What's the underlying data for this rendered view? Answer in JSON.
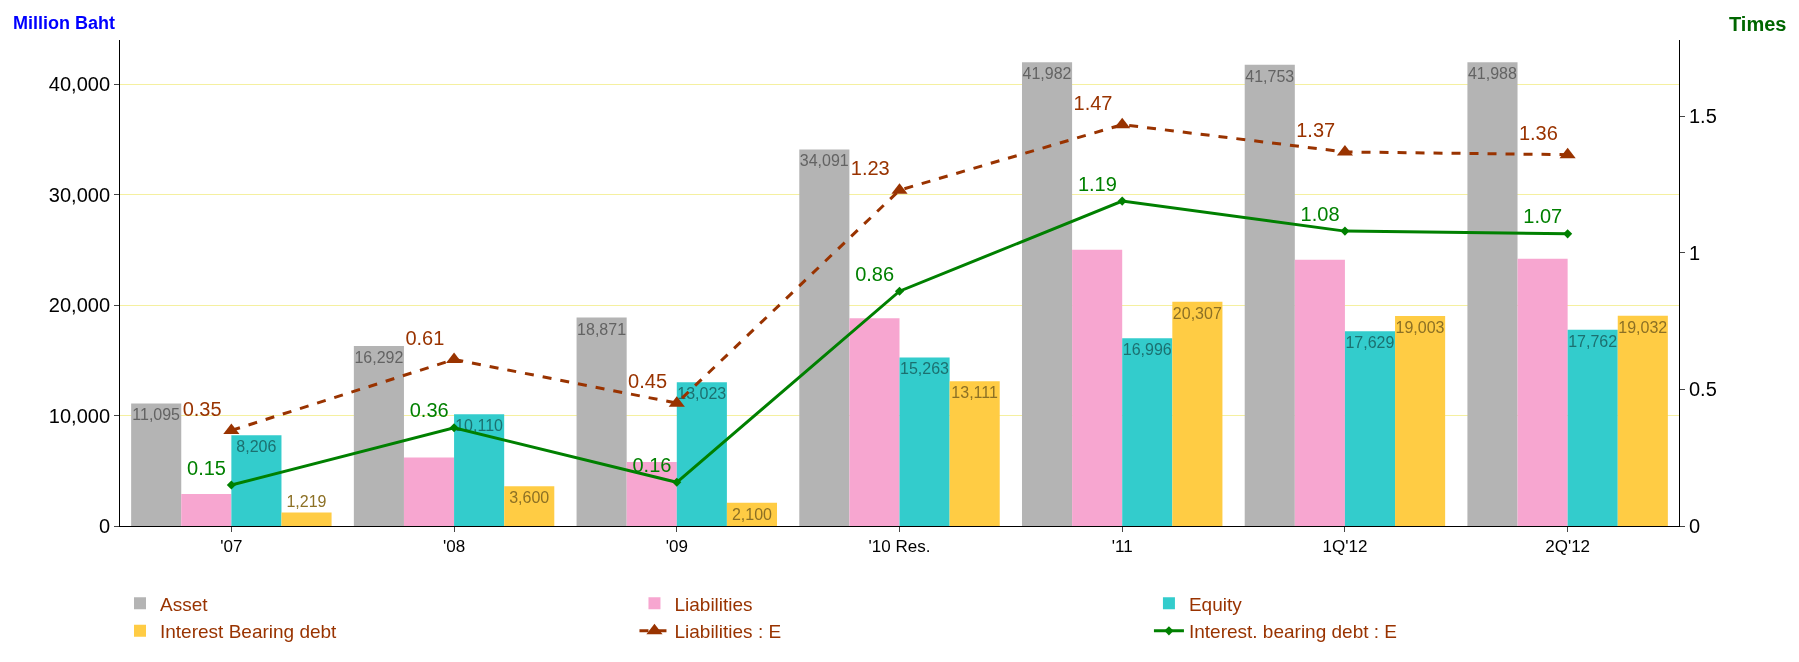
{
  "chart_data": {
    "type": "bar",
    "ylabel": "Million Baht",
    "y2label": "Times",
    "categories": [
      "'07",
      "'08",
      "'09",
      "'10 Res.",
      "'11",
      "1Q'12",
      "2Q'12"
    ],
    "series": [
      {
        "name": "Asset",
        "color": "#b4b4b4",
        "values": [
          11095,
          16292,
          18871,
          34091,
          41982,
          41753,
          41988
        ],
        "value_labels": [
          "11,095",
          "16,292",
          "18,871",
          "34,091",
          "41,982",
          "41,753",
          "41,988"
        ]
      },
      {
        "name": "Liabilities",
        "color": "#f7a6d0",
        "values": [
          2900,
          6200,
          5800,
          18800,
          25000,
          24100,
          24200
        ]
      },
      {
        "name": "Equity",
        "color": "#33cccc",
        "values": [
          8206,
          10110,
          13023,
          15263,
          16996,
          17629,
          17762
        ],
        "value_labels": [
          "8,206",
          "10,110",
          "13,023",
          "15,263",
          "16,996",
          "17,629",
          "17,762"
        ]
      },
      {
        "name": "Interest Bearing debt",
        "color": "#ffcc44",
        "values": [
          1219,
          3600,
          2100,
          13111,
          20307,
          19003,
          19032
        ],
        "value_labels": [
          "1,219",
          "3,600",
          "2,100",
          "13,111",
          "20,307",
          "19,003",
          "19,032"
        ]
      },
      {
        "name": "Liabilities : E",
        "type": "line",
        "axis": "y2",
        "color": "#993300",
        "marker": "triangle",
        "line_style": "dashed",
        "values": [
          0.35,
          0.61,
          0.45,
          1.23,
          1.47,
          1.37,
          1.36
        ],
        "value_labels": [
          "0.35",
          "0.61",
          "0.45",
          "1.23",
          "1.47",
          "1.37",
          "1.36"
        ]
      },
      {
        "name": "Interest. bearing debt : E",
        "type": "line",
        "axis": "y2",
        "color": "#008000",
        "marker": "diamond",
        "line_style": "solid",
        "values": [
          0.15,
          0.36,
          0.16,
          0.86,
          1.19,
          1.08,
          1.07
        ],
        "value_labels": [
          "0.15",
          "0.36",
          "0.16",
          "0.86",
          "1.19",
          "1.08",
          "1.07"
        ]
      }
    ],
    "ylim": [
      0,
      44000
    ],
    "yticks": [
      {
        "value": 0,
        "label": "0"
      },
      {
        "value": 10000,
        "label": "10,000"
      },
      {
        "value": 20000,
        "label": "20,000"
      },
      {
        "value": 30000,
        "label": "30,000"
      },
      {
        "value": 40000,
        "label": "40,000"
      }
    ],
    "y2lim": [
      0,
      1.78
    ],
    "y2ticks": [
      0,
      0.5,
      1,
      1.5
    ],
    "grid": "y",
    "legend": "bottom"
  }
}
